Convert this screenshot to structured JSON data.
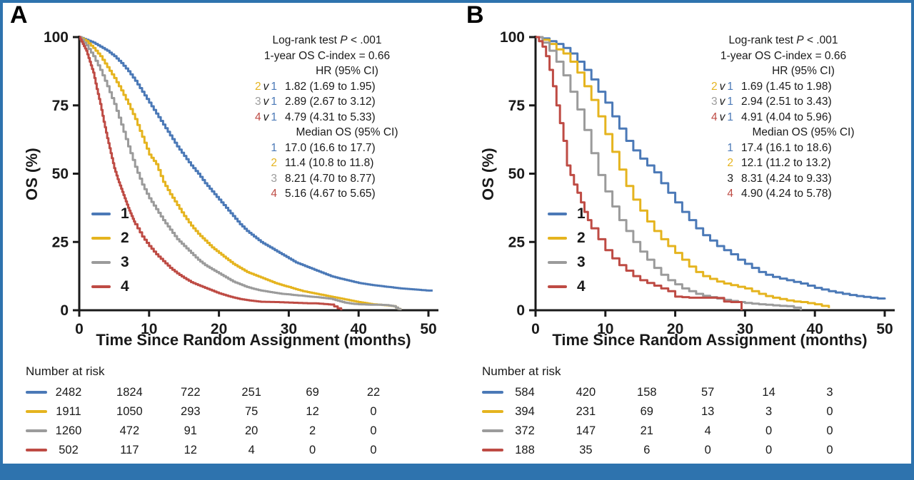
{
  "page": {
    "panel_a_letter": "A",
    "panel_b_letter": "B"
  },
  "colors": {
    "group1_blue": "#4B79B7",
    "group2_yellow": "#E5B41F",
    "group3_gray": "#9B9B9B",
    "group4_red": "#BE4B44",
    "text_black": "#1A1A1A",
    "frame_blue": "#2E73AE"
  },
  "chart_data": [
    {
      "panel": "A",
      "type": "line",
      "step": true,
      "substeps": 3,
      "title": "",
      "xlabel": "Time Since Random Assignment (months)",
      "ylabel": "OS (%)",
      "xlim": [
        0,
        50
      ],
      "ylim": [
        0,
        100
      ],
      "x_ticks": [
        0,
        10,
        20,
        30,
        40,
        50
      ],
      "y_ticks": [
        0,
        25,
        50,
        75,
        100
      ],
      "grid": false,
      "legend_position": "inside-left",
      "series": [
        {
          "name": "1",
          "color": "#4B79B7",
          "x": [
            0,
            1,
            2,
            3,
            4,
            5,
            6,
            7,
            8,
            9,
            10,
            11,
            12,
            13,
            14,
            15,
            16,
            17,
            18,
            19,
            20,
            21,
            22,
            23,
            24,
            25,
            26,
            27,
            28,
            29,
            30,
            31,
            32,
            33,
            34,
            35,
            36,
            37,
            38,
            39,
            40,
            41,
            42,
            43,
            44,
            45,
            46,
            47,
            48,
            49,
            50,
            50.6
          ],
          "y": [
            100,
            99,
            98,
            96.5,
            95,
            93,
            90.5,
            87.5,
            84,
            80,
            76,
            72,
            68,
            64,
            60,
            56.5,
            53,
            50,
            46.5,
            43.5,
            40.5,
            37.5,
            34.5,
            31.5,
            29,
            27,
            25,
            23.5,
            22,
            20.5,
            19,
            17.5,
            16.5,
            15.5,
            14.5,
            13.5,
            12.5,
            11.8,
            11.2,
            10.6,
            10,
            9.6,
            9.2,
            8.9,
            8.6,
            8.3,
            8,
            7.8,
            7.6,
            7.4,
            7.2,
            7.2
          ]
        },
        {
          "name": "2",
          "color": "#E5B41F",
          "x": [
            0,
            1,
            2,
            3,
            4,
            5,
            6,
            7,
            8,
            9,
            10,
            11,
            12,
            13,
            14,
            15,
            16,
            17,
            18,
            19,
            20,
            21,
            22,
            23,
            24,
            25,
            26,
            27,
            28,
            29,
            30,
            31,
            32,
            33,
            34,
            35,
            36,
            37,
            38,
            39,
            40,
            41,
            42,
            43,
            44,
            45,
            46
          ],
          "y": [
            100,
            98.5,
            96,
            93,
            89,
            85,
            80.5,
            75.5,
            70,
            63.5,
            57,
            53.5,
            47,
            42.5,
            38.5,
            34.5,
            31,
            28,
            25.5,
            23,
            21,
            19,
            17,
            15.5,
            14,
            13,
            12,
            11,
            10,
            9.2,
            8.5,
            7.7,
            7,
            6.5,
            6,
            5.5,
            5,
            4.5,
            4,
            3.5,
            3,
            2.6,
            2.2,
            2,
            1.8,
            1.5,
            0
          ]
        },
        {
          "name": "3",
          "color": "#9B9B9B",
          "x": [
            0,
            1,
            2,
            3,
            4,
            5,
            6,
            7,
            8,
            9,
            10,
            11,
            12,
            13,
            14,
            15,
            16,
            17,
            18,
            19,
            20,
            21,
            22,
            23,
            24,
            25,
            26,
            27,
            28,
            29,
            30,
            31,
            32,
            33,
            34,
            35,
            36,
            37,
            38,
            39,
            40,
            41,
            42,
            43,
            44,
            45,
            46
          ],
          "y": [
            100,
            97,
            93,
            88,
            82,
            75.5,
            68,
            60,
            52.5,
            46,
            41,
            37,
            33,
            29.5,
            26,
            23.5,
            21,
            18.5,
            16.5,
            15,
            13.5,
            12,
            10.5,
            9.5,
            8.5,
            7.8,
            7.2,
            6.8,
            6.4,
            6,
            5.8,
            5.5,
            5.3,
            5,
            4.8,
            4.5,
            4.2,
            3.5,
            2.8,
            2.4,
            2.2,
            2.1,
            2,
            2,
            1.9,
            1.5,
            0
          ]
        },
        {
          "name": "4",
          "color": "#BE4B44",
          "x": [
            0,
            0.5,
            1,
            1.5,
            2,
            2.5,
            3,
            3.5,
            4,
            4.5,
            5,
            5.5,
            6,
            6.5,
            7,
            7.5,
            8,
            9,
            10,
            11,
            12,
            13,
            14,
            15,
            16,
            17,
            18,
            19,
            20,
            21,
            22,
            23,
            24,
            25,
            26,
            28,
            30,
            32,
            34,
            35,
            36,
            37.5
          ],
          "y": [
            100,
            97.5,
            95,
            91,
            87,
            81,
            75.5,
            69,
            63,
            57.5,
            52,
            48,
            44.5,
            41,
            37.5,
            34.5,
            31.5,
            27,
            23.5,
            20.5,
            18,
            15.5,
            13.5,
            11.8,
            10.3,
            9.2,
            8.2,
            7.2,
            6.2,
            5.4,
            4.7,
            4.1,
            3.7,
            3.4,
            3.1,
            3,
            2.8,
            2.6,
            2.5,
            2.3,
            2.1,
            0
          ]
        }
      ],
      "stats": {
        "line1_prefix": "Log-rank test ",
        "line1_italic": "P",
        "line1_suffix": " < .001",
        "line2": "1-year OS C-index = 0.66",
        "hr_header": "HR (95% CI)",
        "hr_rows": [
          {
            "g": "2",
            "v": "v",
            "ref": "1",
            "g_color": "#E5B41F",
            "ref_color": "#4B79B7",
            "value": "1.82 (1.69 to 1.95)"
          },
          {
            "g": "3",
            "v": "v",
            "ref": "1",
            "g_color": "#9B9B9B",
            "ref_color": "#4B79B7",
            "value": "2.89 (2.67 to 3.12)"
          },
          {
            "g": "4",
            "v": "v",
            "ref": "1",
            "g_color": "#BE4B44",
            "ref_color": "#4B79B7",
            "value": "4.79 (4.31 to 5.33)"
          }
        ],
        "median_header": "Median OS (95% CI)",
        "median_rows": [
          {
            "g": "1",
            "color": "#4B79B7",
            "value": "17.0 (16.6 to 17.7)"
          },
          {
            "g": "2",
            "color": "#E5B41F",
            "value": "11.4 (10.8 to 11.8)"
          },
          {
            "g": "3",
            "color": "#9B9B9B",
            "value": "8.21 (4.70 to 8.77)"
          },
          {
            "g": "4",
            "color": "#BE4B44",
            "value": "5.16 (4.67 to 5.65)"
          }
        ]
      },
      "number_at_risk": {
        "title": "Number at risk",
        "rows": [
          {
            "group": "1",
            "color": "#4B79B7",
            "values": [
              "2482",
              "1824",
              "722",
              "251",
              "69",
              "22"
            ]
          },
          {
            "group": "2",
            "color": "#E5B41F",
            "values": [
              "1911",
              "1050",
              "293",
              "75",
              "12",
              "0"
            ]
          },
          {
            "group": "3",
            "color": "#9B9B9B",
            "values": [
              "1260",
              "472",
              "91",
              "20",
              "2",
              "0"
            ]
          },
          {
            "group": "4",
            "color": "#BE4B44",
            "values": [
              "502",
              "117",
              "12",
              "4",
              "0",
              "0"
            ]
          }
        ]
      }
    },
    {
      "panel": "B",
      "type": "line",
      "step": true,
      "substeps": 1,
      "title": "",
      "xlabel": "Time Since Random Assignment (months)",
      "ylabel": "OS (%)",
      "xlim": [
        0,
        50
      ],
      "ylim": [
        0,
        100
      ],
      "x_ticks": [
        0,
        10,
        20,
        30,
        40,
        50
      ],
      "y_ticks": [
        0,
        25,
        50,
        75,
        100
      ],
      "grid": false,
      "legend_position": "inside-left",
      "series": [
        {
          "name": "1",
          "color": "#4B79B7",
          "x": [
            0,
            1,
            2,
            3,
            4,
            5,
            6,
            7,
            8,
            9,
            10,
            11,
            12,
            13,
            14,
            15,
            16,
            17,
            18,
            19,
            20,
            21,
            22,
            23,
            24,
            25,
            26,
            27,
            28,
            29,
            30,
            31,
            32,
            33,
            34,
            35,
            36,
            37,
            38,
            39,
            40,
            41,
            42,
            43,
            44,
            45,
            46,
            47,
            48,
            49,
            50
          ],
          "y": [
            100,
            99.5,
            98.5,
            97.5,
            96,
            94,
            91,
            88,
            84.5,
            80,
            76,
            71,
            66.5,
            62,
            58.5,
            55.5,
            53,
            50.5,
            46.5,
            43,
            39.5,
            36,
            33,
            30,
            27.5,
            25.5,
            23.5,
            22,
            20.5,
            18.5,
            17,
            15.5,
            14,
            13,
            12.2,
            11.6,
            11,
            10.4,
            9.8,
            9,
            8.2,
            7.6,
            7,
            6.5,
            6,
            5.6,
            5.2,
            4.9,
            4.6,
            4.3,
            4
          ]
        },
        {
          "name": "2",
          "color": "#E5B41F",
          "x": [
            0,
            1,
            2,
            3,
            4,
            5,
            6,
            7,
            8,
            9,
            10,
            11,
            12,
            13,
            14,
            15,
            16,
            17,
            18,
            19,
            20,
            21,
            22,
            23,
            24,
            25,
            26,
            27,
            28,
            29,
            30,
            31,
            32,
            33,
            34,
            35,
            36,
            37,
            38,
            39,
            40,
            41,
            42
          ],
          "y": [
            100,
            99,
            97.5,
            95.5,
            94,
            91,
            87,
            82,
            77,
            71,
            64.5,
            58,
            51.5,
            45.5,
            40.5,
            36.5,
            32.5,
            29,
            26,
            23.5,
            21,
            18.5,
            16,
            14,
            12.5,
            11.5,
            10.5,
            9.8,
            9.2,
            8.6,
            8,
            7,
            6,
            5.2,
            4.6,
            4.1,
            3.6,
            3.2,
            3,
            2.6,
            2.2,
            1.6,
            0.8
          ]
        },
        {
          "name": "3",
          "color": "#9B9B9B",
          "x": [
            0,
            1,
            2,
            3,
            4,
            5,
            6,
            7,
            8,
            9,
            10,
            11,
            12,
            13,
            14,
            15,
            16,
            17,
            18,
            19,
            20,
            21,
            22,
            23,
            24,
            25,
            26,
            27,
            28,
            29,
            30,
            31,
            32,
            33,
            34,
            35,
            36,
            37,
            38
          ],
          "y": [
            100,
            98,
            95,
            91,
            86,
            80,
            73.5,
            66,
            57.5,
            49.5,
            43.5,
            38,
            33,
            29,
            25,
            21.5,
            18.5,
            15.5,
            13,
            11,
            9.5,
            8,
            7,
            6,
            5.3,
            4.8,
            4.3,
            3.8,
            3.4,
            3,
            2.7,
            2.4,
            2.2,
            2,
            1.8,
            1.6,
            1.5,
            1,
            0
          ]
        },
        {
          "name": "4",
          "color": "#BE4B44",
          "x": [
            0,
            0.5,
            1,
            1.5,
            2,
            2.5,
            3,
            3.5,
            4,
            4.5,
            5,
            5.5,
            6,
            6.5,
            7,
            7.5,
            8,
            9,
            10,
            11,
            12,
            13,
            14,
            15,
            16,
            17,
            18,
            19,
            20,
            21,
            22,
            23,
            24,
            25,
            26,
            27,
            28,
            29.5
          ],
          "y": [
            100,
            98.5,
            96.5,
            93,
            88,
            82,
            75,
            68.5,
            62,
            53,
            49.5,
            46,
            43,
            39.5,
            36,
            33,
            30,
            26,
            22,
            19,
            16.5,
            14.5,
            12.5,
            11,
            10,
            9,
            8,
            7,
            5,
            4.8,
            4.6,
            4.6,
            4.6,
            4.6,
            4.5,
            3.2,
            3,
            0
          ]
        }
      ],
      "stats": {
        "line1_prefix": "Log-rank test ",
        "line1_italic": "P",
        "line1_suffix": " < .001",
        "line2": "1-year OS C-index = 0.66",
        "hr_header": "HR (95% CI)",
        "hr_rows": [
          {
            "g": "2",
            "v": "v",
            "ref": "1",
            "g_color": "#E5B41F",
            "ref_color": "#4B79B7",
            "value": "1.69 (1.45 to 1.98)"
          },
          {
            "g": "3",
            "v": "v",
            "ref": "1",
            "g_color": "#9B9B9B",
            "ref_color": "#4B79B7",
            "value": "2.94 (2.51 to 3.43)"
          },
          {
            "g": "4",
            "v": "v",
            "ref": "1",
            "g_color": "#BE4B44",
            "ref_color": "#4B79B7",
            "value": "4.91 (4.04 to 5.96)"
          }
        ],
        "median_header": "Median OS (95% CI)",
        "median_rows": [
          {
            "g": "1",
            "color": "#4B79B7",
            "value": "17.4 (16.1 to 18.6)"
          },
          {
            "g": "2",
            "color": "#E5B41F",
            "value": "12.1 (11.2 to 13.2)"
          },
          {
            "g": "3",
            "color": "#1A1A1A",
            "value": "8.31 (4.24 to 9.33)"
          },
          {
            "g": "4",
            "color": "#BE4B44",
            "value": "4.90 (4.24 to 5.78)"
          }
        ]
      },
      "number_at_risk": {
        "title": "Number at risk",
        "rows": [
          {
            "group": "1",
            "color": "#4B79B7",
            "values": [
              "584",
              "420",
              "158",
              "57",
              "14",
              "3"
            ]
          },
          {
            "group": "2",
            "color": "#E5B41F",
            "values": [
              "394",
              "231",
              "69",
              "13",
              "3",
              "0"
            ]
          },
          {
            "group": "3",
            "color": "#9B9B9B",
            "values": [
              "372",
              "147",
              "21",
              "4",
              "0",
              "0"
            ]
          },
          {
            "group": "4",
            "color": "#BE4B44",
            "values": [
              "188",
              "35",
              "6",
              "0",
              "0",
              "0"
            ]
          }
        ]
      }
    }
  ]
}
